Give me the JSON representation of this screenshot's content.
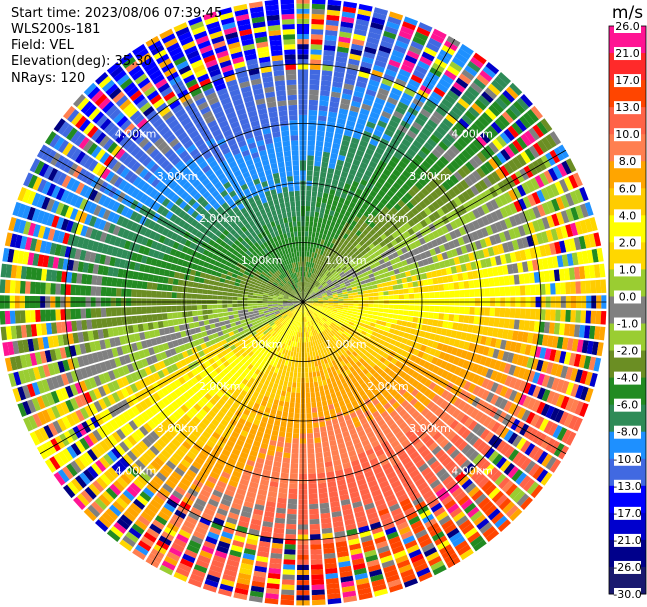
{
  "header": {
    "start_time": "Start time: 2023/08/06 07:39:45",
    "instrument": "WLS200s-181",
    "field": "Field: VEL",
    "elevation": "Elevation(deg): 35.30",
    "nrays": "NRays: 120"
  },
  "chart_data": {
    "type": "heatmap",
    "projection": "polar PPI",
    "n_rays": 120,
    "range_rings_km": [
      1,
      2,
      3,
      4
    ],
    "ring_labels": [
      "1.00km",
      "2.00km",
      "3.00km",
      "4.00km"
    ],
    "max_range_km": 5.1,
    "colorbar": {
      "unit": "m/s",
      "ticks": [
        "26.0",
        "21.0",
        "17.0",
        "13.0",
        "10.0",
        "8.0",
        "6.0",
        "4.0",
        "2.0",
        "1.0",
        "0.0",
        "-1.0",
        "-2.0",
        "-4.0",
        "-6.0",
        "-8.0",
        "-10.0",
        "-13.0",
        "-17.0",
        "-21.0",
        "-26.0",
        "-30.0"
      ],
      "colors": [
        "#ff1493",
        "#ff2a2a",
        "#ff4500",
        "#ff6347",
        "#ff7f50",
        "#ffa500",
        "#ffcc00",
        "#ffff00",
        "#ffd700",
        "#9acd32",
        "#808080",
        "#9acd32",
        "#6b8e23",
        "#228b22",
        "#2e8b57",
        "#1e90ff",
        "#4169e1",
        "#0000ff",
        "#0000cd",
        "#00008b",
        "#191970",
        "#000080"
      ]
    },
    "velocity_pattern": {
      "near_field": "negative velocities (blue/green) toward upper-left, positive velocities (orange/red) toward lower-center",
      "far_field": "noisy multicolor returns"
    }
  }
}
